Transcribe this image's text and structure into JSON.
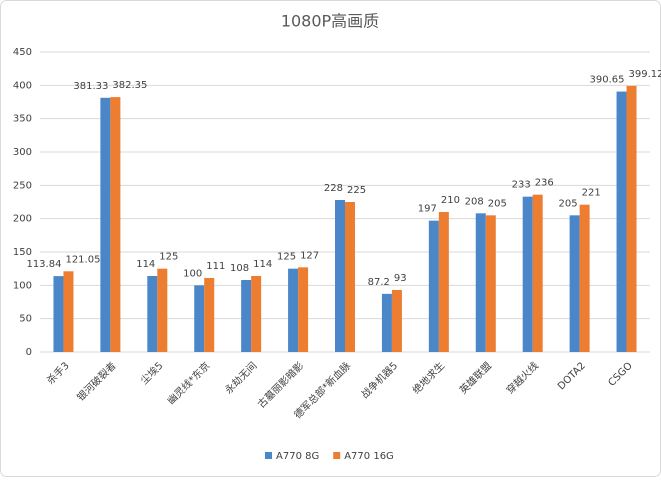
{
  "chart_data": {
    "type": "bar",
    "title": "1080P高画质",
    "categories": [
      "杀手3",
      "银河破裂者",
      "尘埃5",
      "幽灵线*东京",
      "永劫无间",
      "古墓丽影暗影",
      "德军总部*新血脉",
      "战争机器5",
      "绝地求生",
      "英雄联盟",
      "穿越火线",
      "DOTA2",
      "CSGO"
    ],
    "series": [
      {
        "name": "A770 8G",
        "color": "#4a86c8",
        "values": [
          113.84,
          381.33,
          114,
          100,
          108,
          125,
          228,
          87.2,
          197,
          208,
          233,
          205,
          390.65
        ]
      },
      {
        "name": "A770 16G",
        "color": "#ed7d31",
        "values": [
          121.05,
          382.35,
          125,
          111,
          114,
          127,
          225,
          93,
          210,
          205,
          236,
          221,
          399.12
        ]
      }
    ],
    "ylim": [
      0,
      450
    ],
    "yticks": [
      0,
      50,
      100,
      150,
      200,
      250,
      300,
      350,
      400,
      450
    ],
    "grid": true,
    "legend": "bottom"
  }
}
